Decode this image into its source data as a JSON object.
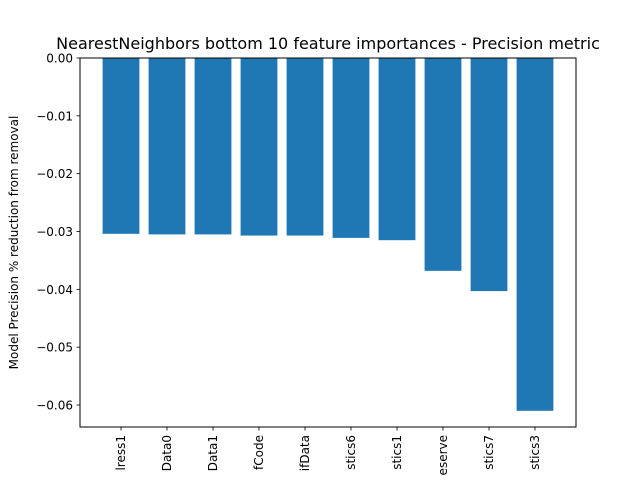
{
  "chart_data": {
    "type": "bar",
    "title": "NearestNeighbors bottom 10 feature importances - Precision metric",
    "xlabel": "",
    "ylabel": "Model Precision % reduction from removal",
    "categories": [
      "lress1",
      "Data0",
      "Data1",
      "fCode",
      "ifData",
      "stics6",
      "stics1",
      "eserve",
      "stics7",
      "stics3"
    ],
    "values": [
      -0.0304,
      -0.0305,
      -0.0305,
      -0.0307,
      -0.0307,
      -0.0311,
      -0.0315,
      -0.0368,
      -0.0403,
      -0.061
    ],
    "ylim": [
      -0.0638,
      0.0
    ],
    "yticks": [
      0.0,
      -0.01,
      -0.02,
      -0.03,
      -0.04,
      -0.05,
      -0.06
    ],
    "ytick_labels": [
      "0.00",
      "−0.01",
      "−0.02",
      "−0.03",
      "−0.04",
      "−0.05",
      "−0.06"
    ],
    "bar_color": "#1f77b4",
    "grid": false,
    "legend": "none"
  }
}
